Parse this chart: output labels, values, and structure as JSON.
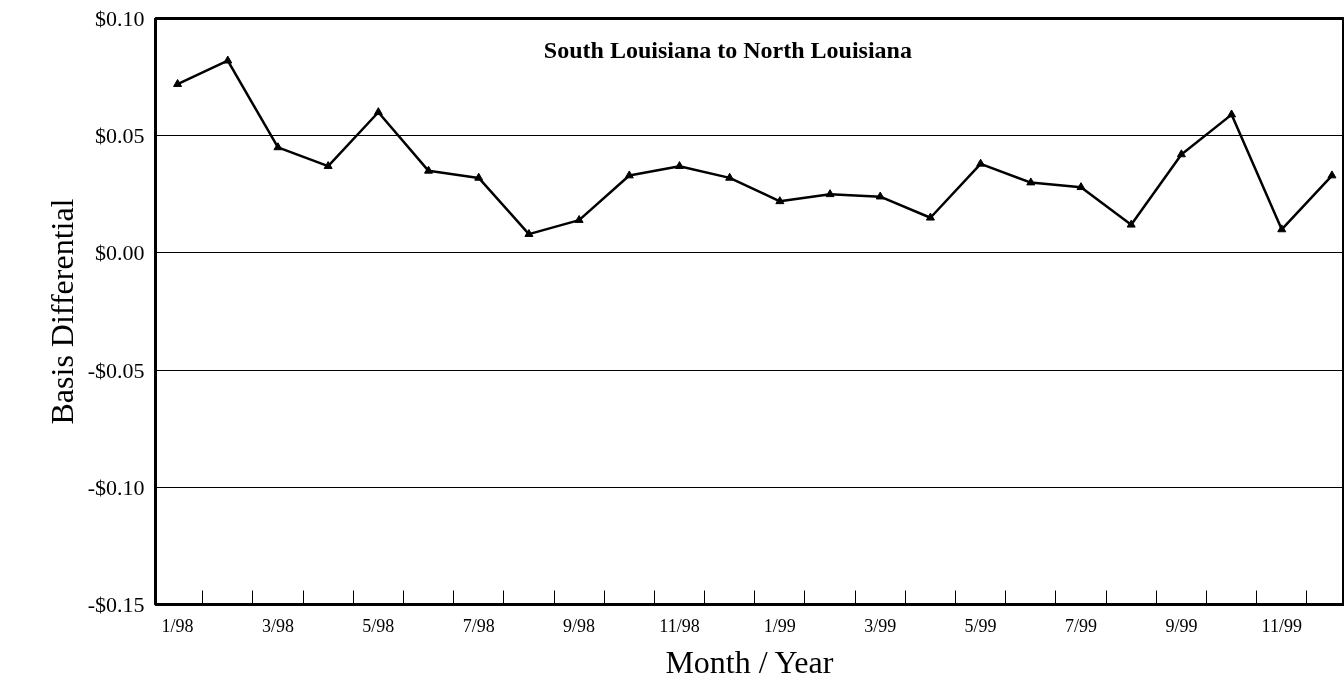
{
  "chart_data": {
    "type": "line",
    "title": "South Louisiana to North Louisiana",
    "xlabel": "Month / Year",
    "ylabel": "Basis Differential",
    "categories": [
      "1/98",
      null,
      "3/98",
      null,
      "5/98",
      null,
      "7/98",
      null,
      "9/98",
      null,
      "11/98",
      null,
      "1/99",
      null,
      "3/99",
      null,
      "5/99",
      null,
      "7/99",
      null,
      "9/99",
      null,
      "11/99",
      null
    ],
    "series": [
      {
        "color": "#000000",
        "values": [
          0.072,
          0.082,
          0.045,
          0.037,
          0.06,
          0.035,
          0.032,
          0.008,
          0.014,
          0.033,
          0.037,
          0.032,
          0.022,
          0.025,
          0.024,
          0.015,
          0.038,
          0.03,
          0.028,
          0.012,
          0.042,
          0.059,
          0.01,
          0.033
        ]
      }
    ],
    "ylim": [
      -0.15,
      0.1
    ],
    "yticks": [
      {
        "value": -0.15,
        "label": "-$0.15"
      },
      {
        "value": -0.1,
        "label": "-$0.10"
      },
      {
        "value": -0.05,
        "label": "-$0.05"
      },
      {
        "value": 0,
        "label": "$0.00"
      },
      {
        "value": 0.05,
        "label": "$0.05"
      },
      {
        "value": 0.1,
        "label": "$0.10"
      }
    ],
    "grid": "y",
    "marker": "triangle",
    "line_style": "solid"
  }
}
